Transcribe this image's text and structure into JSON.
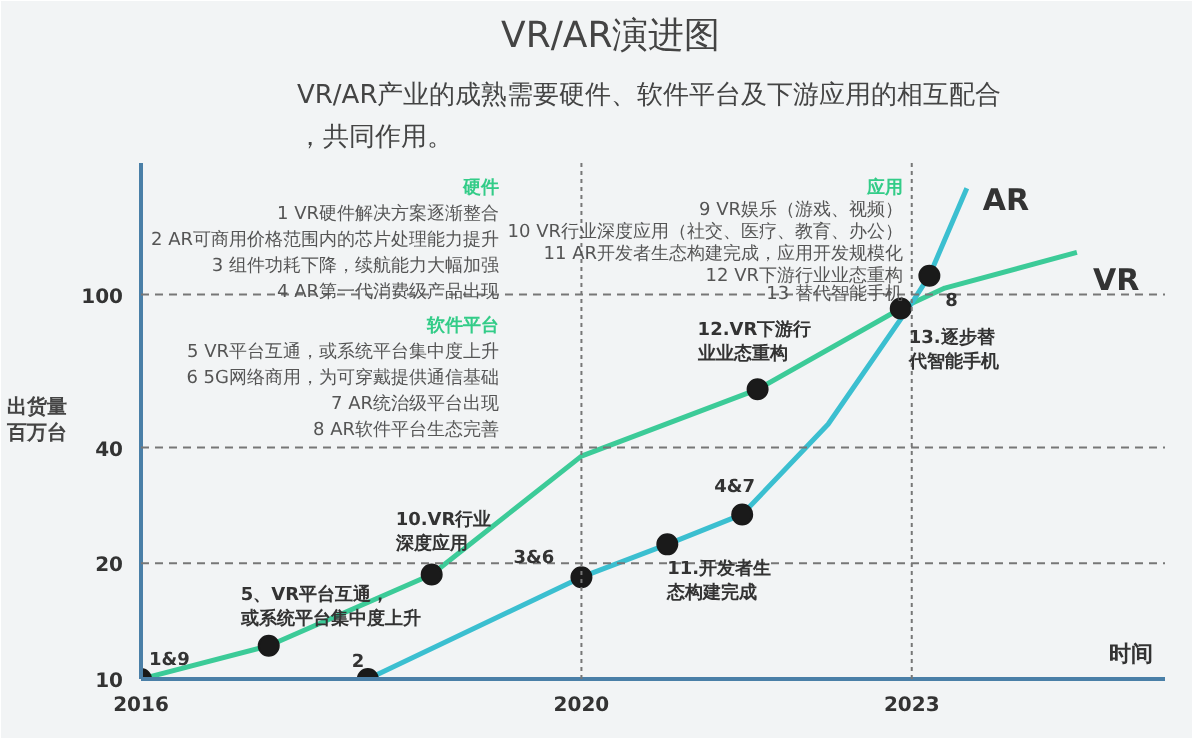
{
  "chart_data": {
    "type": "line",
    "title": "VR/AR演进图",
    "subtitle": "VR/AR产业的成熟需要硬件、软件平台及下游应用的相互配合，共同作用。",
    "xlabel": "时间",
    "ylabel": "出货量百万台",
    "log": "y",
    "xlim": [
      2016,
      2025.3
    ],
    "ylim": [
      10,
      220
    ],
    "xticks": [
      2016,
      2020,
      2023
    ],
    "yticks": [
      10,
      20,
      40,
      100
    ],
    "grid": false,
    "legend": false,
    "line_style": "solid",
    "series": [
      {
        "name": "VR",
        "color": "#3ccb98",
        "x": [
          2016,
          2017.16,
          2018.64,
          2020,
          2021.6,
          2022.9,
          2023.3,
          2024.5
        ],
        "values": [
          10,
          12.2,
          18.7,
          38,
          56.7,
          92,
          104,
          128.8
        ]
      },
      {
        "name": "AR",
        "color": "#3bbfd0",
        "x": [
          2018.06,
          2020,
          2020.78,
          2021.46,
          2022.24,
          2023,
          2023.16,
          2023.5
        ],
        "values": [
          10,
          18.4,
          22.4,
          26.8,
          46,
          95,
          112,
          189
        ]
      },
      {
        "type": "scatter",
        "marker": "circle",
        "color": "#1a1a1a",
        "x": [
          2016,
          2017.16,
          2018.64,
          2021.6,
          2022.9
        ],
        "values": [
          10,
          12.2,
          18.7,
          56.7,
          92
        ]
      },
      {
        "type": "scatter",
        "marker": "circle",
        "color": "#1a1a1a",
        "x": [
          2018.06,
          2020,
          2020.78,
          2021.46,
          2023.16
        ],
        "values": [
          10,
          18.4,
          22.4,
          26.8,
          112
        ]
      }
    ],
    "ref_lines": [
      {
        "axis": "y",
        "value": 100,
        "line_style": "dashed",
        "color": "#777777"
      },
      {
        "axis": "y",
        "value": 40,
        "line_style": "dashed",
        "color": "#777777"
      },
      {
        "axis": "y",
        "value": 20,
        "line_style": "dashed",
        "color": "#777777"
      },
      {
        "axis": "x",
        "value": 2020,
        "line_style": "dotted",
        "color": "#777777"
      },
      {
        "axis": "x",
        "value": 2023,
        "line_style": "dotted",
        "color": "#777777"
      }
    ],
    "annotations": [
      "硬件",
      "1 VR硬件解决方案逐渐整合",
      "2 AR可商用价格范围内的芯片处理能力提升",
      "3 组件功耗下降，续航能力大幅加强",
      "4 AR第一代消费级产品出现",
      "软件平台",
      "5 VR平台互通，或系统平台集中度上升",
      "6 5G网络商用，为可穿戴提供通信基础",
      "7 AR统治级平台出现",
      "8 AR软件平台生态完善",
      "应用",
      "9 VR娱乐（游戏、视频）",
      "10 VR行业深度应用（社交、医疗、教育、办公）",
      "11 AR开发者生态构建完成，应用开发规模化",
      "12 VR下游行业业态重构",
      "13 替代智能手机",
      {
        "text": "1&9",
        "x": 2016,
        "y": 10
      },
      {
        "text": "5、VR平台互通，或系统平台集中度上升",
        "x": 2017.16,
        "y": 12.2
      },
      {
        "text": "10.VR行业深度应用",
        "x": 2018.64,
        "y": 18.7
      },
      {
        "text": "12.VR下游行业业态重构",
        "x": 2021.6,
        "y": 56.7
      },
      {
        "text": "13.逐步替代智能手机",
        "x": 2022.9,
        "y": 92
      },
      {
        "text": "2",
        "x": 2018.06,
        "y": 10
      },
      {
        "text": "3&6",
        "x": 2020,
        "y": 18.4
      },
      {
        "text": "11.开发者生态构建完成",
        "x": 2020.78,
        "y": 22.4
      },
      {
        "text": "4&7",
        "x": 2021.46,
        "y": 26.8
      },
      {
        "text": "8",
        "x": 2023.16,
        "y": 112
      }
    ]
  }
}
